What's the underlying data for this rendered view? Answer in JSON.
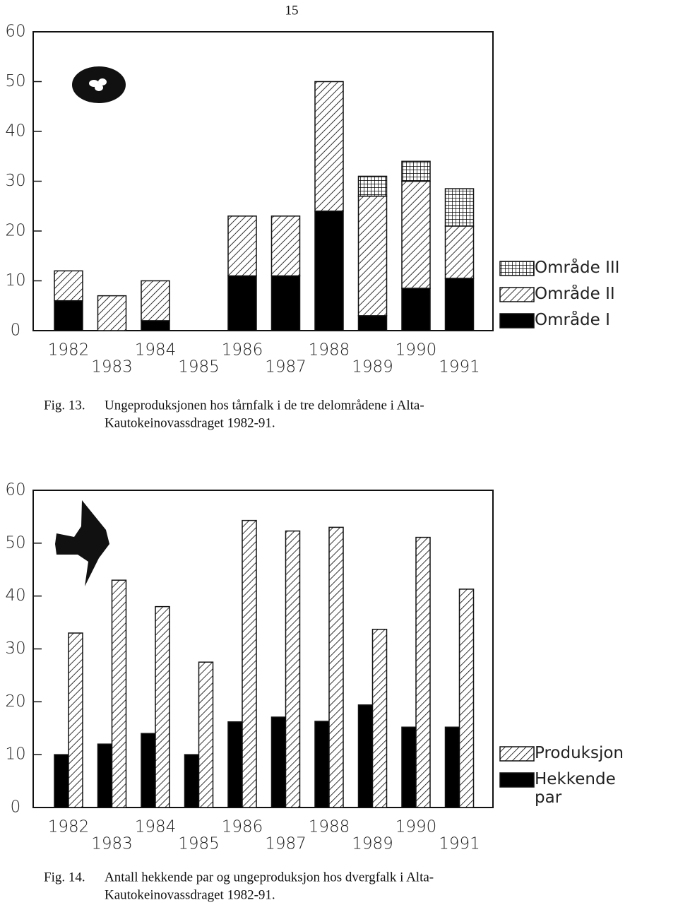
{
  "page_number": "15",
  "chart_data": [
    {
      "type": "stacked_bar",
      "categories": [
        "1982",
        "1983",
        "1984",
        "1985",
        "1986",
        "1987",
        "1988",
        "1989",
        "1990",
        "1991"
      ],
      "series": [
        {
          "name": "Område I",
          "color": "#000000",
          "pattern": "solid",
          "values": [
            6,
            0,
            2,
            0,
            11,
            11,
            24,
            3,
            8.5,
            10.5
          ]
        },
        {
          "name": "Område II",
          "color": "#000000",
          "pattern": "hatch",
          "values": [
            6,
            7,
            8,
            0,
            12,
            12,
            26,
            24,
            21.5,
            10.5
          ]
        },
        {
          "name": "Område III",
          "color": "#000000",
          "pattern": "grid",
          "values": [
            0,
            0,
            0,
            0,
            0,
            0,
            0,
            4,
            4,
            7.5
          ]
        }
      ],
      "ylim": [
        0,
        60
      ],
      "yticks": [
        0,
        10,
        20,
        30,
        40,
        50,
        60
      ],
      "legend": "right",
      "caption_label": "Fig. 13.",
      "caption_lines": [
        "Ungeproduksjonen hos tårnfalk i de tre delområdene i Alta-",
        "Kautokeinovassdraget 1982-91."
      ]
    },
    {
      "type": "grouped_bar",
      "categories": [
        "1982",
        "1983",
        "1984",
        "1985",
        "1986",
        "1987",
        "1988",
        "1989",
        "1990",
        "1991"
      ],
      "series": [
        {
          "name": "Hekkende par",
          "color": "#000000",
          "pattern": "solid",
          "values": [
            10,
            12,
            14,
            10,
            16.2,
            17.1,
            16.3,
            19.4,
            15.2,
            15.2
          ]
        },
        {
          "name": "Produksjon",
          "color": "#000000",
          "pattern": "hatch",
          "values": [
            33,
            43,
            38,
            27.5,
            54.3,
            52.3,
            53,
            33.7,
            51.1,
            41.3
          ]
        }
      ],
      "ylim": [
        0,
        60
      ],
      "yticks": [
        0,
        10,
        20,
        30,
        40,
        50,
        60
      ],
      "legend": "right",
      "caption_label": "Fig. 14.",
      "caption_lines": [
        "Antall hekkende par og ungeproduksjon hos dvergfalk i Alta-",
        "Kautokeinovassdraget 1982-91."
      ]
    }
  ]
}
